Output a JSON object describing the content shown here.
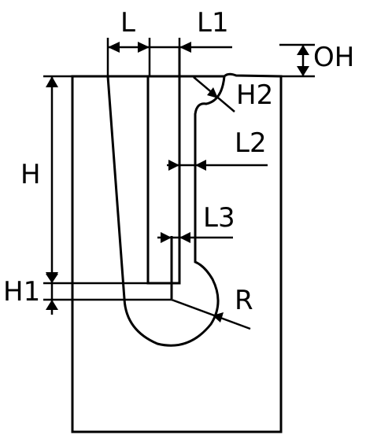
{
  "colors": {
    "body_fill": "#FBCB67",
    "slot_fill": "#FFFFFF",
    "stroke": "#000000"
  },
  "labels": {
    "L": "L",
    "L1": "L1",
    "OH": "OH",
    "H2": "H2",
    "L2": "L2",
    "H": "H",
    "L3": "L3",
    "H1": "H1",
    "R": "R"
  }
}
